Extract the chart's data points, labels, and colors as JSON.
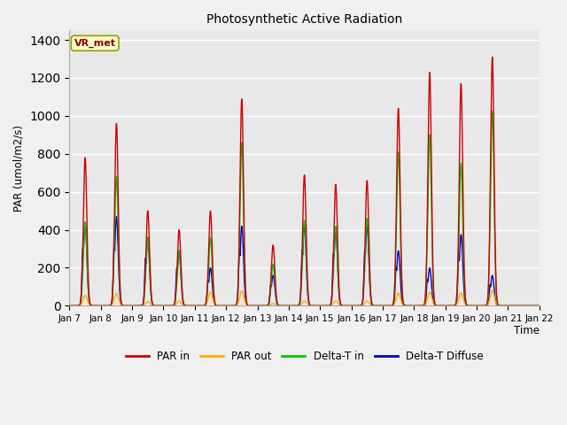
{
  "title": "Photosynthetic Active Radiation",
  "ylabel": "PAR (umol/m2/s)",
  "xlabel": "Time",
  "ylim": [
    0,
    1450
  ],
  "annotation_text": "VR_met",
  "background_color": "#f0f0f0",
  "plot_bg_color": "#e8e8e8",
  "grid_color": "#ffffff",
  "colors": {
    "PAR in": "#cc0000",
    "PAR out": "#ffaa00",
    "Delta-T in": "#00cc00",
    "Delta-T Diffuse": "#0000cc"
  },
  "x_tick_labels": [
    "Jan 7",
    "Jan 8",
    "Jan 9",
    "Jan 10",
    "Jan 11",
    "Jan 12",
    "Jan 13",
    "Jan 14",
    "Jan 15",
    "Jan 16",
    "Jan 17",
    "Jan 18",
    "Jan 19",
    "Jan 20",
    "Jan 21",
    "Jan 22"
  ],
  "num_days": 15,
  "peaks": {
    "PAR_in": [
      780,
      960,
      500,
      400,
      500,
      1090,
      320,
      690,
      640,
      660,
      1040,
      1230,
      1170,
      1310,
      0
    ],
    "PAR_out": [
      55,
      65,
      22,
      25,
      72,
      78,
      12,
      25,
      25,
      25,
      68,
      72,
      68,
      82,
      0
    ],
    "Delta_T_in": [
      440,
      680,
      360,
      290,
      360,
      860,
      220,
      450,
      420,
      460,
      810,
      900,
      750,
      1025,
      0
    ],
    "Delta_T_dif": [
      440,
      470,
      360,
      290,
      200,
      420,
      160,
      420,
      400,
      420,
      290,
      200,
      375,
      160,
      0
    ]
  }
}
